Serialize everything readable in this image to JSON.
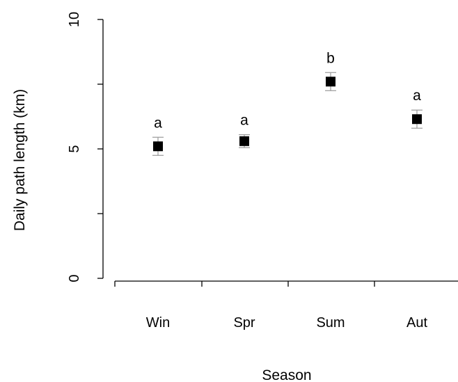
{
  "chart_data": {
    "type": "scatter",
    "title": "",
    "xlabel": "Season",
    "ylabel": "Daily path length (km)",
    "categories": [
      "Win",
      "Spr",
      "Sum",
      "Aut"
    ],
    "series": [
      {
        "values": [
          5.1,
          5.3,
          7.6,
          6.15
        ],
        "err_lower": [
          4.75,
          5.05,
          7.25,
          5.8
        ],
        "err_upper": [
          5.45,
          5.55,
          7.95,
          6.5
        ],
        "significance": [
          "a",
          "a",
          "b",
          "a"
        ]
      }
    ],
    "ylim": [
      0,
      10
    ],
    "yticks": [
      0,
      5,
      10
    ],
    "ytick_labels": [
      "0",
      "5",
      "10"
    ],
    "marker": "square",
    "marker_color": "#000000",
    "errorbar_color": "#9a9a9a",
    "grid": false,
    "legend": "none"
  }
}
